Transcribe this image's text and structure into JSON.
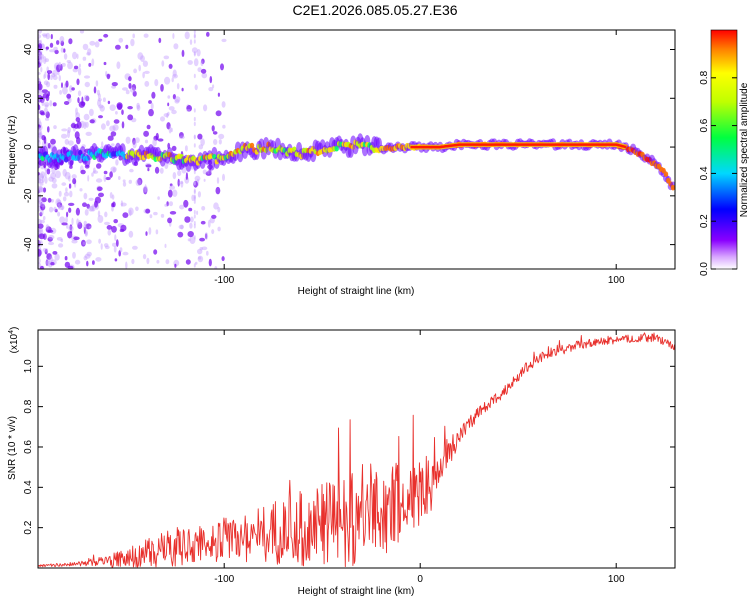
{
  "figure_title": "C2E1.2026.085.05.27.E36",
  "chart_data": [
    {
      "type": "heatmap",
      "title": "C2E1.2026.085.05.27.E36",
      "xlabel": "Height of straight line (km)",
      "ylabel": "Frequency (Hz)",
      "xlim": [
        -195,
        130
      ],
      "ylim": [
        -50,
        48
      ],
      "xticks": [
        -100,
        100
      ],
      "xtick_labels": [
        "-100",
        "100"
      ],
      "yticks": [
        -40,
        -20,
        0,
        20,
        40
      ],
      "ytick_labels": [
        "-40",
        "-20",
        "0",
        "20",
        "40"
      ],
      "ridge": {
        "x": [
          -195,
          -180,
          -165,
          -150,
          -130,
          -115,
          -100,
          -90,
          -75,
          -60,
          -50,
          -40,
          -30,
          -20,
          -10,
          0,
          10,
          20,
          40,
          60,
          80,
          95,
          100,
          105,
          110,
          115,
          120,
          125,
          130
        ],
        "y": [
          -4,
          -4,
          -3,
          -3,
          -4,
          -6,
          -4,
          -1,
          0,
          -3,
          -1,
          0,
          1,
          -1,
          0,
          0,
          0,
          1,
          1,
          1,
          1,
          1,
          1,
          0,
          -2,
          -4,
          -7,
          -11,
          -18
        ]
      },
      "colorbar": {
        "label": "Normalized spectral amplitude",
        "range": [
          0,
          1
        ],
        "ticks": [
          0.0,
          0.2,
          0.4,
          0.6,
          0.8
        ],
        "tick_labels": [
          "0.0",
          "0.2",
          "0.4",
          "0.6",
          "0.8"
        ]
      }
    },
    {
      "type": "line",
      "xlabel": "Height of straight line (km)",
      "ylabel": "SNR (10 * v/v)",
      "scale_note": "(x10",
      "scale_exp": "4",
      "scale_close": ")",
      "xlim": [
        -195,
        130
      ],
      "ylim": [
        0,
        1.18
      ],
      "xticks": [
        -100,
        0,
        100
      ],
      "xtick_labels": [
        "-100",
        "0",
        "100"
      ],
      "yticks": [
        0.2,
        0.4,
        0.6,
        0.8,
        1.0
      ],
      "ytick_labels": [
        "0.2",
        "0.4",
        "0.6",
        "0.8",
        "1.0"
      ],
      "color": "#e8302c",
      "series": [
        {
          "name": "SNR",
          "x": [
            -195,
            -185,
            -175,
            -165,
            -155,
            -145,
            -135,
            -125,
            -115,
            -105,
            -95,
            -85,
            -75,
            -65,
            -55,
            -45,
            -35,
            -25,
            -15,
            -8,
            -5,
            0,
            5,
            10,
            15,
            20,
            25,
            30,
            35,
            40,
            45,
            50,
            55,
            60,
            65,
            70,
            80,
            90,
            100,
            110,
            120,
            130
          ],
          "y": [
            0.01,
            0.015,
            0.02,
            0.03,
            0.04,
            0.06,
            0.08,
            0.1,
            0.12,
            0.13,
            0.15,
            0.16,
            0.18,
            0.19,
            0.21,
            0.23,
            0.25,
            0.28,
            0.3,
            0.32,
            0.34,
            0.38,
            0.42,
            0.5,
            0.58,
            0.66,
            0.72,
            0.77,
            0.81,
            0.85,
            0.9,
            0.95,
            1.0,
            1.04,
            1.06,
            1.08,
            1.1,
            1.12,
            1.13,
            1.14,
            1.14,
            1.1
          ],
          "noise": [
            0.005,
            0.008,
            0.01,
            0.02,
            0.04,
            0.06,
            0.08,
            0.1,
            0.1,
            0.1,
            0.12,
            0.14,
            0.16,
            0.18,
            0.2,
            0.22,
            0.25,
            0.25,
            0.22,
            0.2,
            0.18,
            0.18,
            0.15,
            0.1,
            0.08,
            0.05,
            0.04,
            0.03,
            0.03,
            0.03,
            0.03,
            0.03,
            0.03,
            0.025,
            0.025,
            0.025,
            0.025,
            0.02,
            0.02,
            0.02,
            0.02,
            0.02
          ]
        }
      ]
    }
  ],
  "colors": {
    "axis": "#000000",
    "snr_line": "#e8302c",
    "colormap": [
      "#ffffff",
      "#8a00ff",
      "#0000ff",
      "#00ffff",
      "#00ff00",
      "#ffff00",
      "#ff0000"
    ]
  }
}
